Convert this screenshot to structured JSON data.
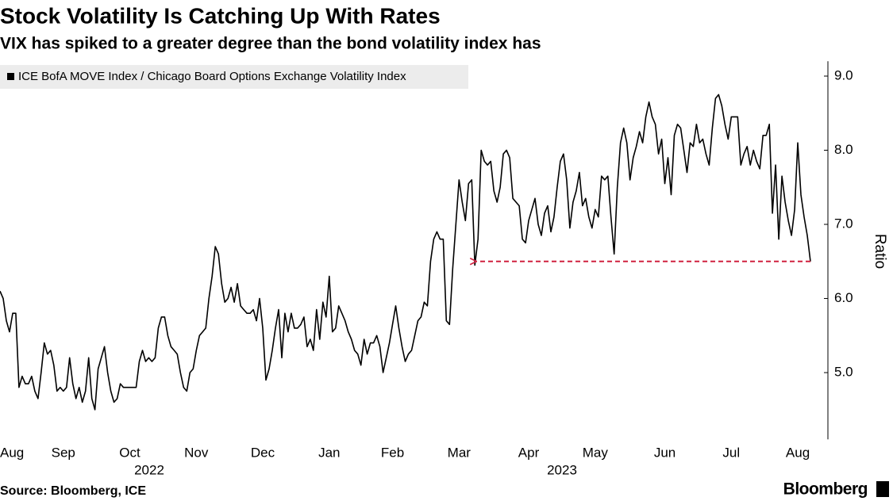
{
  "chart_data": {
    "type": "line",
    "title": "Stock Volatility Is Catching Up With Rates",
    "subtitle": "VIX has spiked to a greater degree than the bond volatility index has",
    "y_label": "Ratio",
    "source": "Source: Bloomberg, ICE",
    "brand": "Bloomberg",
    "years": [
      "2022",
      "2023"
    ],
    "categories": [
      null,
      null,
      null,
      null,
      "Aug",
      null,
      null,
      null,
      null,
      null,
      null,
      null,
      null,
      null,
      null,
      null,
      null,
      null,
      null,
      null,
      "Sep",
      null,
      null,
      null,
      null,
      null,
      null,
      null,
      null,
      null,
      null,
      null,
      null,
      null,
      null,
      null,
      null,
      null,
      null,
      null,
      null,
      "Oct",
      null,
      null,
      null,
      null,
      null,
      null,
      null,
      null,
      null,
      null,
      null,
      null,
      null,
      null,
      null,
      null,
      null,
      null,
      null,
      null,
      "Nov",
      null,
      null,
      null,
      null,
      null,
      null,
      null,
      null,
      null,
      null,
      null,
      null,
      null,
      null,
      null,
      null,
      null,
      null,
      null,
      null,
      "Dec",
      null,
      null,
      null,
      null,
      null,
      null,
      null,
      null,
      null,
      null,
      null,
      null,
      null,
      null,
      null,
      null,
      null,
      null,
      null,
      null,
      "Jan",
      null,
      null,
      null,
      null,
      null,
      null,
      null,
      null,
      null,
      null,
      null,
      null,
      null,
      null,
      null,
      null,
      null,
      null,
      null,
      "Feb",
      null,
      null,
      null,
      null,
      null,
      null,
      null,
      null,
      null,
      null,
      null,
      null,
      null,
      null,
      null,
      null,
      null,
      null,
      null,
      null,
      "Mar",
      null,
      null,
      null,
      null,
      null,
      null,
      null,
      null,
      null,
      null,
      null,
      null,
      null,
      null,
      null,
      null,
      null,
      null,
      null,
      null,
      null,
      "Apr",
      null,
      null,
      null,
      null,
      null,
      null,
      null,
      null,
      null,
      null,
      null,
      null,
      null,
      null,
      null,
      null,
      null,
      null,
      null,
      null,
      "May",
      null,
      null,
      null,
      null,
      null,
      null,
      null,
      null,
      null,
      null,
      null,
      null,
      null,
      null,
      null,
      null,
      null,
      null,
      null,
      null,
      null,
      "Jun",
      null,
      null,
      null,
      null,
      null,
      null,
      null,
      null,
      null,
      null,
      null,
      null,
      null,
      null,
      null,
      null,
      null,
      null,
      null,
      null,
      "Jul",
      null,
      null,
      null,
      null,
      null,
      null,
      null,
      null,
      null,
      null,
      null,
      null,
      null,
      null,
      null,
      null,
      null,
      null,
      null,
      null,
      "Aug",
      null,
      null,
      null,
      null
    ],
    "series": [
      {
        "name": "ICE BofA MOVE Index / Chicago Board Options Exchange Volatility Index",
        "color": "#000000",
        "values": [
          6.1,
          6.0,
          5.7,
          5.55,
          5.8,
          5.8,
          4.8,
          4.95,
          4.85,
          4.85,
          4.95,
          4.75,
          4.65,
          5.0,
          5.4,
          5.25,
          5.3,
          5.1,
          4.75,
          4.8,
          4.75,
          4.8,
          5.2,
          4.85,
          4.65,
          4.8,
          4.6,
          4.75,
          5.2,
          4.65,
          4.5,
          5.05,
          5.2,
          5.35,
          5.0,
          4.75,
          4.6,
          4.65,
          4.85,
          4.8,
          4.8,
          4.8,
          4.8,
          4.8,
          5.15,
          5.3,
          5.15,
          5.2,
          5.15,
          5.2,
          5.6,
          5.75,
          5.75,
          5.5,
          5.35,
          5.3,
          5.25,
          5.0,
          4.8,
          4.75,
          5.0,
          5.05,
          5.3,
          5.5,
          5.55,
          5.6,
          6.0,
          6.3,
          6.7,
          6.6,
          6.2,
          5.95,
          6.0,
          6.15,
          5.95,
          6.2,
          5.9,
          5.85,
          5.8,
          5.8,
          5.85,
          5.7,
          6.0,
          5.6,
          4.9,
          5.05,
          5.3,
          5.6,
          5.85,
          5.2,
          5.8,
          5.55,
          5.8,
          5.6,
          5.6,
          5.65,
          5.75,
          5.35,
          5.45,
          5.3,
          5.85,
          5.45,
          5.95,
          5.75,
          6.3,
          5.55,
          5.6,
          5.9,
          5.8,
          5.7,
          5.55,
          5.45,
          5.3,
          5.25,
          5.1,
          5.45,
          5.25,
          5.4,
          5.4,
          5.5,
          5.35,
          5.0,
          5.2,
          5.4,
          5.65,
          5.9,
          5.6,
          5.35,
          5.15,
          5.25,
          5.3,
          5.5,
          5.7,
          5.75,
          5.95,
          5.9,
          6.5,
          6.8,
          6.9,
          6.8,
          6.8,
          5.7,
          5.65,
          6.4,
          7.0,
          7.6,
          7.3,
          7.05,
          7.55,
          7.6,
          6.45,
          6.8,
          8.0,
          7.85,
          7.8,
          7.85,
          7.45,
          7.3,
          7.5,
          7.95,
          8.0,
          7.9,
          7.35,
          7.3,
          7.25,
          6.8,
          6.75,
          7.05,
          7.2,
          7.35,
          7.0,
          6.85,
          7.15,
          7.25,
          6.9,
          7.1,
          7.5,
          7.85,
          7.95,
          7.6,
          6.95,
          7.3,
          7.45,
          7.7,
          7.25,
          7.35,
          7.1,
          6.95,
          7.2,
          7.1,
          7.65,
          7.6,
          7.65,
          7.1,
          6.6,
          7.5,
          8.1,
          8.3,
          8.1,
          7.6,
          7.9,
          8.05,
          8.25,
          8.1,
          8.45,
          8.65,
          8.45,
          8.35,
          7.95,
          8.15,
          7.55,
          7.9,
          7.4,
          8.2,
          8.35,
          8.3,
          8.0,
          7.7,
          8.1,
          8.05,
          8.35,
          8.1,
          8.15,
          7.95,
          7.8,
          8.3,
          8.7,
          8.75,
          8.6,
          8.35,
          8.15,
          8.45,
          8.45,
          8.45,
          7.8,
          7.95,
          8.05,
          7.8,
          8.0,
          7.85,
          7.75,
          8.2,
          8.2,
          8.35,
          7.15,
          7.8,
          6.8,
          7.65,
          7.3,
          7.05,
          6.85,
          7.2,
          8.1,
          7.4,
          7.1,
          6.85,
          6.5
        ]
      }
    ],
    "ylim": [
      4.1,
      9.2
    ],
    "yticks": [
      {
        "value": 5,
        "label": "5.0"
      },
      {
        "value": 6,
        "label": "6.0"
      },
      {
        "value": 7,
        "label": "7.0"
      },
      {
        "value": 8,
        "label": "8.0"
      },
      {
        "value": 9,
        "label": "9.0"
      }
    ],
    "y_axis_side": "right",
    "annotation_color": "#d0213f",
    "grid": false
  }
}
